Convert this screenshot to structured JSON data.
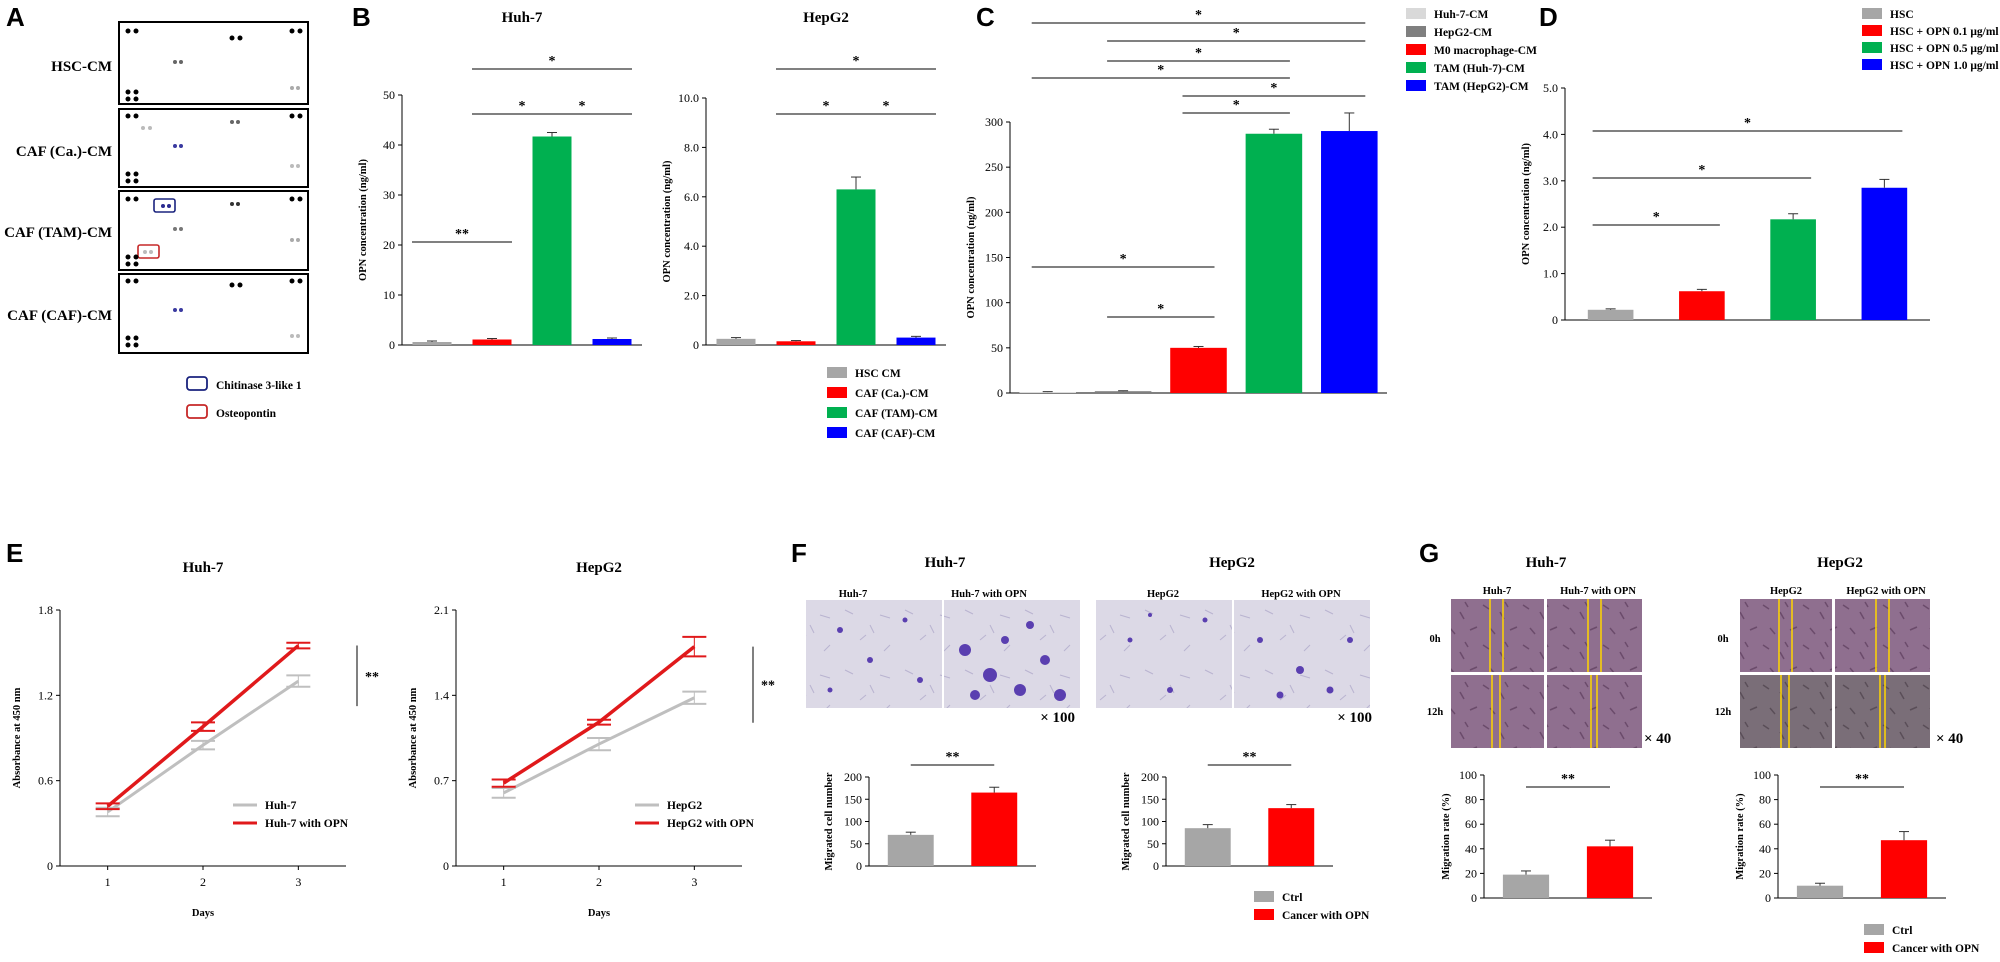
{
  "panel_letters": [
    "A",
    "B",
    "C",
    "D",
    "E",
    "F",
    "G"
  ],
  "panelA": {
    "rows": [
      "HSC-CM",
      "CAF (Ca.)-CM",
      "CAF (TAM)-CM",
      "CAF (CAF)-CM"
    ],
    "legend": [
      {
        "label": "Chitinase 3-like 1",
        "color": "#1a237e"
      },
      {
        "label": "Osteopontin",
        "color": "#c62828"
      }
    ]
  },
  "colors": {
    "gray": "#a6a6a6",
    "red": "#ff0000",
    "green": "#00b050",
    "blue": "#0000ff",
    "lightgray": "#d9d9d9",
    "darkgray": "#7f7f7f",
    "line_gray": "#bfbfbf",
    "line_red": "#e0191b"
  },
  "chart_data": [
    {
      "id": "B1",
      "type": "bar",
      "title": "Huh-7",
      "ylabel": "OPN concentration (ng/ml)",
      "ylim": [
        0,
        50
      ],
      "yticks": [
        "0",
        "10",
        "20",
        "30",
        "40",
        "50"
      ],
      "categories": [
        "HSC CM",
        "CAF (Ca.)-CM",
        "CAF (TAM)-CM",
        "CAF (CAF)-CM"
      ],
      "values": [
        0.6,
        1.1,
        41.7,
        1.2
      ],
      "errors": [
        0.2,
        0.2,
        0.8,
        0.2
      ],
      "sig": [
        {
          "a": 0,
          "b": 1,
          "label": "**"
        },
        {
          "a": 1,
          "b": 2,
          "label": "*"
        },
        {
          "a": 2,
          "b": 3,
          "label": "*"
        },
        {
          "a": 1,
          "b": 3,
          "label": "*"
        }
      ]
    },
    {
      "id": "B2",
      "type": "bar",
      "title": "HepG2",
      "ylabel": "OPN concentration (ng/ml)",
      "ylim": [
        0,
        10
      ],
      "yticks": [
        "0",
        "2.0",
        "4.0",
        "6.0",
        "8.0",
        "10.0"
      ],
      "categories": [
        "HSC CM",
        "CAF (Ca.)-CM",
        "CAF (TAM)-CM",
        "CAF (CAF)-CM"
      ],
      "values": [
        0.25,
        0.15,
        6.3,
        0.3
      ],
      "errors": [
        0.05,
        0.03,
        0.5,
        0.05
      ],
      "sig": [
        {
          "a": 1,
          "b": 2,
          "label": "*"
        },
        {
          "a": 2,
          "b": 3,
          "label": "*"
        },
        {
          "a": 1,
          "b": 3,
          "label": "*"
        }
      ],
      "legend": [
        "HSC CM",
        "CAF (Ca.)-CM",
        "CAF (TAM)-CM",
        "CAF (CAF)-CM"
      ]
    },
    {
      "id": "C",
      "type": "bar",
      "title": "",
      "ylabel": "OPN concentration (ng/ml)",
      "ylim": [
        0,
        300
      ],
      "yticks": [
        "0",
        "50",
        "100",
        "150",
        "200",
        "250",
        "300"
      ],
      "categories": [
        "Huh-7-CM",
        "HepG2-CM",
        "M0 macrophage-CM",
        "TAM (Huh-7)-CM",
        "TAM (HepG2)-CM"
      ],
      "values": [
        1,
        2,
        50,
        287,
        290
      ],
      "errors": [
        0.5,
        0.5,
        1.5,
        5,
        20
      ],
      "sig": [
        {
          "a": 1,
          "b": 2,
          "label": "*"
        },
        {
          "a": 0,
          "b": 2,
          "label": "*"
        },
        {
          "a": 2,
          "b": 3,
          "label": "*"
        },
        {
          "a": 2,
          "b": 4,
          "label": "*"
        },
        {
          "a": 0,
          "b": 3,
          "label": "*"
        },
        {
          "a": 1,
          "b": 3,
          "label": "*"
        },
        {
          "a": 1,
          "b": 4,
          "label": "*"
        },
        {
          "a": 0,
          "b": 4,
          "label": "*"
        }
      ],
      "legend": [
        "Huh-7-CM",
        "HepG2-CM",
        "M0 macrophage-CM",
        "TAM (Huh-7)-CM",
        "TAM (HepG2)-CM"
      ]
    },
    {
      "id": "D",
      "type": "bar",
      "title": "",
      "ylabel": "OPN concentration (ng/ml)",
      "ylim": [
        0,
        5
      ],
      "yticks": [
        "0",
        "1.0",
        "2.0",
        "3.0",
        "4.0",
        "5.0"
      ],
      "categories": [
        "HSC",
        "HSC + OPN 0.1 μg/ml",
        "HSC + OPN 0.5 μg/ml",
        "HSC + OPN 1.0 μg/ml"
      ],
      "values": [
        0.22,
        0.62,
        2.17,
        2.85
      ],
      "errors": [
        0.02,
        0.04,
        0.12,
        0.18
      ],
      "sig": [
        {
          "a": 0,
          "b": 1,
          "label": "*"
        },
        {
          "a": 0,
          "b": 2,
          "label": "*"
        },
        {
          "a": 0,
          "b": 3,
          "label": "*"
        }
      ],
      "legend": [
        "HSC",
        "HSC + OPN 0.1 μg/ml",
        "HSC + OPN 0.5 μg/ml",
        "HSC + OPN 1.0 μg/ml"
      ]
    },
    {
      "id": "E1",
      "type": "line",
      "title": "Huh-7",
      "xlabel": "Days",
      "ylabel": "Absorbance at 450 nm",
      "ylim": [
        0,
        1.8
      ],
      "yticks": [
        "0",
        "0.6",
        "1.2",
        "1.8"
      ],
      "x": [
        "1",
        "2",
        "3"
      ],
      "series": [
        {
          "name": "Huh-7",
          "values": [
            0.38,
            0.85,
            1.3
          ],
          "errors": [
            0.03,
            0.03,
            0.04
          ]
        },
        {
          "name": "Huh-7 with OPN",
          "values": [
            0.42,
            0.98,
            1.55
          ],
          "errors": [
            0.02,
            0.03,
            0.02
          ]
        }
      ],
      "sig": "**"
    },
    {
      "id": "E2",
      "type": "line",
      "title": "HepG2",
      "xlabel": "Days",
      "ylabel": "Absorbance at 450 nm",
      "ylim": [
        0,
        2.1
      ],
      "yticks": [
        "0",
        "0.7",
        "1.4",
        "2.1"
      ],
      "x": [
        "1",
        "2",
        "3"
      ],
      "series": [
        {
          "name": "HepG2",
          "values": [
            0.6,
            1.0,
            1.38
          ],
          "errors": [
            0.04,
            0.05,
            0.05
          ]
        },
        {
          "name": "HepG2 with OPN",
          "values": [
            0.68,
            1.18,
            1.8
          ],
          "errors": [
            0.03,
            0.02,
            0.08
          ]
        }
      ],
      "sig": "**"
    },
    {
      "id": "F1",
      "type": "bar",
      "title": "Huh-7",
      "ylabel": "Migrated cell number",
      "ylim": [
        0,
        200
      ],
      "yticks": [
        "0",
        "50",
        "100",
        "150",
        "200"
      ],
      "categories": [
        "Ctrl",
        "Cancer with OPN"
      ],
      "values": [
        70,
        165
      ],
      "errors": [
        6,
        12
      ],
      "sig": "**"
    },
    {
      "id": "F2",
      "type": "bar",
      "title": "HepG2",
      "ylabel": "Migrated cell number",
      "ylim": [
        0,
        200
      ],
      "yticks": [
        "0",
        "50",
        "100",
        "150",
        "200"
      ],
      "categories": [
        "Ctrl",
        "Cancer with OPN"
      ],
      "values": [
        85,
        130
      ],
      "errors": [
        8,
        8
      ],
      "sig": "**",
      "legend": [
        "Ctrl",
        "Cancer with OPN"
      ]
    },
    {
      "id": "G1",
      "type": "bar",
      "title": "Huh-7",
      "ylabel": "Migration rate (%)",
      "ylim": [
        0,
        100
      ],
      "yticks": [
        "0",
        "20",
        "40",
        "60",
        "80",
        "100"
      ],
      "categories": [
        "Ctrl",
        "Cancer with OPN"
      ],
      "values": [
        19,
        42
      ],
      "errors": [
        3,
        5
      ],
      "sig": "**"
    },
    {
      "id": "G2",
      "type": "bar",
      "title": "HepG2",
      "ylabel": "Migration rate (%)",
      "ylim": [
        0,
        100
      ],
      "yticks": [
        "0",
        "20",
        "40",
        "60",
        "80",
        "100"
      ],
      "categories": [
        "Ctrl",
        "Cancer with OPN"
      ],
      "values": [
        10,
        47
      ],
      "errors": [
        2,
        7
      ],
      "sig": "**",
      "legend": [
        "Ctrl",
        "Cancer with OPN"
      ]
    }
  ],
  "panelF": {
    "huh7_labels": [
      "Huh-7",
      "Huh-7 with OPN"
    ],
    "hepg2_labels": [
      "HepG2",
      "HepG2 with OPN"
    ],
    "magnification": "× 100"
  },
  "panelG": {
    "huh7_labels": [
      "Huh-7",
      "Huh-7 with OPN"
    ],
    "hepg2_labels": [
      "HepG2",
      "HepG2 with OPN"
    ],
    "rows": [
      "0h",
      "12h"
    ],
    "magnification": "× 40"
  }
}
